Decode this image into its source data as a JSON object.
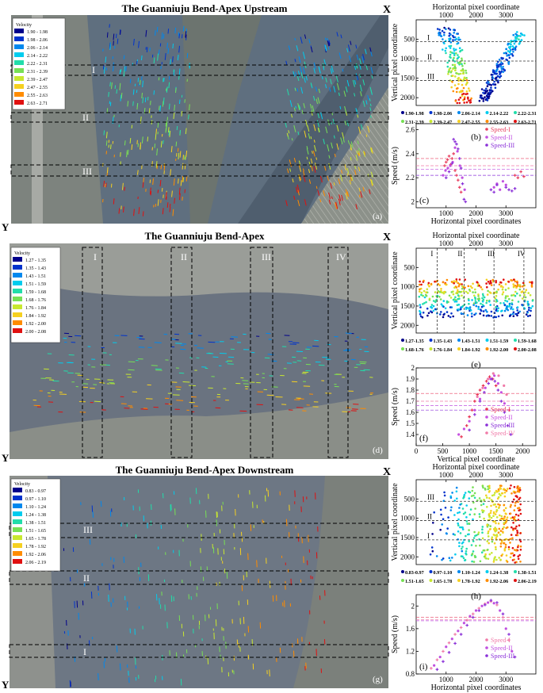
{
  "figure": {
    "panels": [
      {
        "id": "a",
        "title": "The Guanniuju Bend-Apex Upstream",
        "letter": "(a)",
        "x_axis_letter": "X",
        "y_axis_letter": "Y",
        "legend_title": "Velocity",
        "legend_ranges": [
          "1.90 - 1.98",
          "1.98 - 2.06",
          "2.06 - 2.14",
          "2.14 - 2.22",
          "2.22 - 2.31",
          "2.31 - 2.39",
          "2.39 - 2.47",
          "2.47 - 2.55",
          "2.55 - 2.63",
          "2.63 - 2.71"
        ],
        "section_labels": [
          "I",
          "II",
          "III"
        ],
        "colors": {
          "palette": [
            "#00008b",
            "#0033cc",
            "#0088ee",
            "#00ccee",
            "#22ddaa",
            "#77e055",
            "#c8e830",
            "#f5d020",
            "#ff8c00",
            "#e01010"
          ],
          "water": "#5f6f7f",
          "land": "#8a8f88"
        }
      },
      {
        "id": "d",
        "title": "The Guanniuju Bend-Apex",
        "letter": "(d)",
        "x_axis_letter": "X",
        "y_axis_letter": "Y",
        "legend_title": "Velocity",
        "legend_ranges": [
          "1.27 - 1.35",
          "1.35 - 1.43",
          "1.43 - 1.51",
          "1.51 - 1.59",
          "1.59 - 1.68",
          "1.68 - 1.76",
          "1.76 - 1.84",
          "1.84 - 1.92",
          "1.92 - 2.00",
          "2.00 - 2.08"
        ],
        "section_labels": [
          "I",
          "II",
          "III",
          "IV"
        ],
        "colors": {
          "palette": [
            "#00008b",
            "#0033cc",
            "#0088ee",
            "#00ccee",
            "#22ddaa",
            "#77e055",
            "#c8e830",
            "#f5d020",
            "#ff8c00",
            "#e01010"
          ],
          "water": "#6a7380",
          "land": "#9a9d98"
        }
      },
      {
        "id": "g",
        "title": "The Guanniuju Bend-Apex Downstream",
        "letter": "(g)",
        "x_axis_letter": "X",
        "y_axis_letter": "Y",
        "legend_title": "Velocity",
        "legend_ranges": [
          "0.83 - 0.97",
          "0.97 - 1.10",
          "1.10 - 1.24",
          "1.24 - 1.38",
          "1.38 - 1.51",
          "1.51 - 1.65",
          "1.65 - 1.78",
          "1.78 - 1.92",
          "1.92 - 2.06",
          "2.06 - 2.19"
        ],
        "section_labels": [
          "III",
          "II",
          "I"
        ],
        "colors": {
          "palette": [
            "#00008b",
            "#0033cc",
            "#0088ee",
            "#00ccee",
            "#22ddaa",
            "#77e055",
            "#c8e830",
            "#f5d020",
            "#ff8c00",
            "#e01010"
          ],
          "water": "#6d7784",
          "land": "#8e918d"
        }
      }
    ]
  },
  "chart_data": [
    {
      "id": "b",
      "type": "scatter",
      "letter": "(b)",
      "xlabel": "Horizontal pixel coordinate",
      "ylabel": "Vertical pixel coordinate",
      "xlim": [
        0,
        4000
      ],
      "xticks": [
        1000,
        2000,
        3000
      ],
      "ylim": [
        2200,
        0
      ],
      "yticks": [
        500,
        1000,
        1500,
        2000
      ],
      "section_lines": [
        {
          "label": "I",
          "y": 560
        },
        {
          "label": "II",
          "y": 1060
        },
        {
          "label": "III",
          "y": 1560
        }
      ],
      "legend": [
        "1.90-1.98",
        "1.98-2.06",
        "2.06-2.14",
        "2.14-2.22",
        "2.22-2.31",
        "2.31-2.39",
        "2.39-2.47",
        "2.47-2.55",
        "2.55-2.63",
        "2.63-2.71"
      ],
      "legend_colors": [
        "#00008b",
        "#0033cc",
        "#0088ee",
        "#00ccee",
        "#22ddaa",
        "#77e055",
        "#c8e830",
        "#f5d020",
        "#ff8c00",
        "#e01010"
      ],
      "clusters": [
        {
          "x_top": [
            700,
            1400
          ],
          "x_bottom": [
            1300,
            1900
          ],
          "y": [
            200,
            2150
          ],
          "color_top": 1,
          "color_bottom": 9
        },
        {
          "x_top": [
            3300,
            3700
          ],
          "x_bottom": [
            1950,
            2400
          ],
          "y": [
            300,
            2100
          ],
          "color_top": 3,
          "color_bottom": 0
        }
      ]
    },
    {
      "id": "c",
      "type": "scatter",
      "letter": "(c)",
      "xlabel": "Horizontal pixel coordinates",
      "ylabel": "Speed (m/s)",
      "xlim": [
        0,
        4000
      ],
      "xticks": [
        1000,
        2000,
        3000
      ],
      "ylim": [
        1.95,
        2.65
      ],
      "yticks": [
        2.0,
        2.2,
        2.4,
        2.6
      ],
      "reference_lines": [
        2.36,
        2.3,
        2.27,
        2.22
      ],
      "series": [
        {
          "name": "Speed-I",
          "color": "#e84060",
          "points": [
            [
              950,
              2.3
            ],
            [
              1000,
              2.33
            ],
            [
              1050,
              2.35
            ],
            [
              1100,
              2.38
            ],
            [
              1150,
              2.31
            ],
            [
              1200,
              2.36
            ],
            [
              1250,
              2.4
            ],
            [
              1300,
              2.26
            ],
            [
              1350,
              2.22
            ],
            [
              1400,
              2.18
            ],
            [
              1450,
              2.12
            ],
            [
              1500,
              2.08
            ],
            [
              3300,
              2.22
            ],
            [
              3400,
              2.2
            ],
            [
              3500,
              2.25
            ],
            [
              3600,
              2.21
            ]
          ]
        },
        {
          "name": "Speed-II",
          "color": "#c050e0",
          "points": [
            [
              900,
              2.22
            ],
            [
              980,
              2.26
            ],
            [
              1060,
              2.28
            ],
            [
              1140,
              2.3
            ],
            [
              1220,
              2.33
            ],
            [
              1300,
              2.45
            ],
            [
              1380,
              2.42
            ],
            [
              1460,
              2.3
            ],
            [
              1540,
              2.2
            ],
            [
              1620,
              2.1
            ],
            [
              2600,
              2.12
            ],
            [
              2700,
              2.15
            ],
            [
              2800,
              2.1
            ],
            [
              2900,
              2.17
            ],
            [
              3000,
              2.14
            ]
          ]
        },
        {
          "name": "Speed-III",
          "color": "#8a30d8",
          "points": [
            [
              1000,
              2.2
            ],
            [
              1100,
              2.25
            ],
            [
              1200,
              2.32
            ],
            [
              1250,
              2.52
            ],
            [
              1300,
              2.5
            ],
            [
              1350,
              2.48
            ],
            [
              1400,
              2.44
            ],
            [
              1450,
              2.36
            ],
            [
              1500,
              2.28
            ],
            [
              1550,
              2.15
            ],
            [
              1600,
              2.02
            ],
            [
              1650,
              2.0
            ],
            [
              2500,
              2.1
            ],
            [
              2600,
              2.08
            ],
            [
              2700,
              2.14
            ],
            [
              3000,
              2.12
            ],
            [
              3100,
              2.1
            ],
            [
              3200,
              2.09
            ],
            [
              3300,
              2.11
            ]
          ]
        }
      ]
    },
    {
      "id": "e",
      "type": "scatter",
      "letter": "(e)",
      "xlabel": "Horizontal pixel coordinate",
      "ylabel": "Vertical pixel coordinate",
      "xlim": [
        0,
        4000
      ],
      "xticks": [
        1000,
        2000,
        3000
      ],
      "ylim": [
        2200,
        0
      ],
      "yticks": [
        500,
        1000,
        1500,
        2000
      ],
      "section_lines": [
        {
          "label": "I",
          "x": 700
        },
        {
          "label": "II",
          "x": 1600
        },
        {
          "label": "III",
          "x": 2600
        },
        {
          "label": "IV",
          "x": 3600
        }
      ],
      "legend": [
        "1.27-1.35",
        "1.35-1.43",
        "1.43-1.51",
        "1.51-1.59",
        "1.59-1.68",
        "1.68-1.76",
        "1.76-1.84",
        "1.84-1.92",
        "1.92-2.00",
        "2.00-2.08"
      ],
      "legend_colors": [
        "#00008b",
        "#0033cc",
        "#0088ee",
        "#00ccee",
        "#22ddaa",
        "#77e055",
        "#c8e830",
        "#f5d020",
        "#ff8c00",
        "#e01010"
      ],
      "band": {
        "x": [
          100,
          3900
        ],
        "y_top": 800,
        "y_bottom": 1800
      }
    },
    {
      "id": "f",
      "type": "scatter",
      "letter": "(f)",
      "xlabel": "Vertical pixel coordinate",
      "ylabel": "Speed (m/s)",
      "xlim": [
        0,
        2250
      ],
      "xticks": [
        0,
        500,
        1000,
        1500,
        2000
      ],
      "ylim": [
        1.3,
        2.0
      ],
      "yticks": [
        1.4,
        1.5,
        1.6,
        1.7,
        1.8,
        1.9,
        2.0
      ],
      "reference_lines": [
        1.77,
        1.7,
        1.66,
        1.62
      ],
      "series": [
        {
          "name": "Speed-I",
          "color": "#e83050",
          "points": [
            [
              850,
              1.38
            ],
            [
              950,
              1.48
            ],
            [
              1000,
              1.56
            ],
            [
              1050,
              1.62
            ],
            [
              1100,
              1.7
            ],
            [
              1150,
              1.76
            ],
            [
              1200,
              1.8
            ],
            [
              1260,
              1.84
            ],
            [
              1320,
              1.88
            ],
            [
              1380,
              1.92
            ],
            [
              1440,
              1.9
            ],
            [
              1500,
              1.84
            ]
          ]
        },
        {
          "name": "Speed-II",
          "color": "#c64fe0",
          "points": [
            [
              800,
              1.4
            ],
            [
              900,
              1.45
            ],
            [
              1000,
              1.52
            ],
            [
              1100,
              1.62
            ],
            [
              1200,
              1.72
            ],
            [
              1300,
              1.82
            ],
            [
              1400,
              1.9
            ],
            [
              1470,
              1.93
            ],
            [
              1540,
              1.86
            ],
            [
              1600,
              1.78
            ],
            [
              1660,
              1.68
            ]
          ]
        },
        {
          "name": "Speed-III",
          "color": "#8a2fd8",
          "points": [
            [
              1000,
              1.44
            ],
            [
              1100,
              1.58
            ],
            [
              1200,
              1.7
            ],
            [
              1280,
              1.78
            ],
            [
              1360,
              1.86
            ],
            [
              1420,
              1.9
            ],
            [
              1480,
              1.88
            ],
            [
              1540,
              1.8
            ],
            [
              1600,
              1.7
            ],
            [
              1660,
              1.6
            ],
            [
              1720,
              1.48
            ],
            [
              1780,
              1.4
            ]
          ]
        },
        {
          "name": "Speed-IV",
          "color": "#f07aa8",
          "points": [
            [
              1150,
              1.74
            ],
            [
              1250,
              1.82
            ],
            [
              1350,
              1.9
            ],
            [
              1450,
              1.95
            ],
            [
              1550,
              1.93
            ],
            [
              1650,
              1.84
            ],
            [
              1700,
              1.76
            ],
            [
              1750,
              1.62
            ]
          ]
        }
      ]
    },
    {
      "id": "h",
      "type": "scatter",
      "letter": "(h)",
      "xlabel": "Horizontal pixel coordinate",
      "ylabel": "Vertical pixel coordinate",
      "xlim": [
        0,
        4000
      ],
      "xticks": [
        1000,
        2000,
        3000
      ],
      "ylim": [
        2200,
        0
      ],
      "yticks": [
        500,
        1000,
        1500,
        2000
      ],
      "section_lines": [
        {
          "label": "III",
          "y": 560
        },
        {
          "label": "II",
          "y": 1060
        },
        {
          "label": "I",
          "y": 1560
        }
      ],
      "legend": [
        "0.83-0.97",
        "0.97-1.10",
        "1.10-1.24",
        "1.24-1.38",
        "1.38-1.51",
        "1.51-1.65",
        "1.65-1.78",
        "1.78-1.92",
        "1.92-2.06",
        "2.06-2.19"
      ],
      "legend_colors": [
        "#00008b",
        "#0033cc",
        "#0088ee",
        "#00ccee",
        "#22ddaa",
        "#77e055",
        "#c8e830",
        "#f5d020",
        "#ff8c00",
        "#e01010"
      ],
      "band": {
        "x": [
          400,
          3500
        ],
        "y": [
          150,
          2150
        ]
      }
    },
    {
      "id": "i",
      "type": "scatter",
      "letter": "(i)",
      "xlabel": "Horizontal pixel coordinates",
      "ylabel": "Speed (m/s)",
      "xlim": [
        0,
        4000
      ],
      "xticks": [
        1000,
        2000,
        3000
      ],
      "ylim": [
        0.8,
        2.2
      ],
      "yticks": [
        0.8,
        1.2,
        1.6,
        2.0
      ],
      "reference_lines": [
        1.8,
        1.76,
        1.74
      ],
      "series": [
        {
          "name": "Speed-I",
          "color": "#f07aa8",
          "points": [
            [
              500,
              0.9
            ],
            [
              700,
              1.05
            ],
            [
              900,
              1.2
            ],
            [
              1100,
              1.35
            ],
            [
              1300,
              1.5
            ],
            [
              1500,
              1.62
            ],
            [
              1700,
              1.75
            ],
            [
              1900,
              1.86
            ],
            [
              2100,
              1.96
            ],
            [
              2300,
              2.04
            ],
            [
              2500,
              2.08
            ],
            [
              2700,
              2.02
            ],
            [
              2900,
              1.8
            ],
            [
              3100,
              1.4
            ]
          ]
        },
        {
          "name": "Speed-II",
          "color": "#c050e0",
          "points": [
            [
              600,
              0.95
            ],
            [
              800,
              1.1
            ],
            [
              1000,
              1.28
            ],
            [
              1200,
              1.42
            ],
            [
              1400,
              1.56
            ],
            [
              1600,
              1.7
            ],
            [
              1800,
              1.82
            ],
            [
              2000,
              1.92
            ],
            [
              2200,
              2.0
            ],
            [
              2400,
              2.06
            ],
            [
              2600,
              2.05
            ],
            [
              2800,
              1.92
            ],
            [
              3000,
              1.6
            ],
            [
              3200,
              1.2
            ]
          ]
        },
        {
          "name": "Speed-III",
          "color": "#8a30d8",
          "points": [
            [
              700,
              0.88
            ],
            [
              900,
              1.02
            ],
            [
              1100,
              1.18
            ],
            [
              1300,
              1.34
            ],
            [
              1500,
              1.5
            ],
            [
              1700,
              1.66
            ],
            [
              1900,
              1.8
            ],
            [
              2100,
              1.92
            ],
            [
              2300,
              2.02
            ],
            [
              2500,
              2.1
            ],
            [
              2700,
              2.06
            ],
            [
              2900,
              1.86
            ],
            [
              3100,
              1.5
            ],
            [
              3300,
              1.1
            ]
          ]
        }
      ]
    }
  ]
}
